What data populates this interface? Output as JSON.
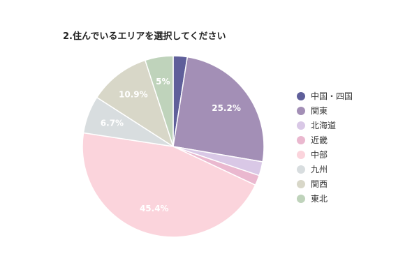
{
  "chart_data": {
    "type": "pie",
    "title": "2.住んでいるエリアを選択してください",
    "legend_position": "right",
    "categories": [
      "中国・四国",
      "関東",
      "北海道",
      "近畿",
      "中部",
      "九州",
      "関西",
      "東北"
    ],
    "values": [
      2.5,
      25.2,
      2.5,
      1.8,
      45.4,
      6.7,
      10.9,
      5
    ],
    "data_labels": [
      "",
      "25.2%",
      "",
      "",
      "45.4%",
      "6.7%",
      "10.9%",
      "5%"
    ],
    "colors": [
      "#5f5f9a",
      "#a38fb6",
      "#d9c8e6",
      "#eab8cf",
      "#fbd4dc",
      "#d8dddf",
      "#d8d7c8",
      "#bfd3bb"
    ]
  }
}
